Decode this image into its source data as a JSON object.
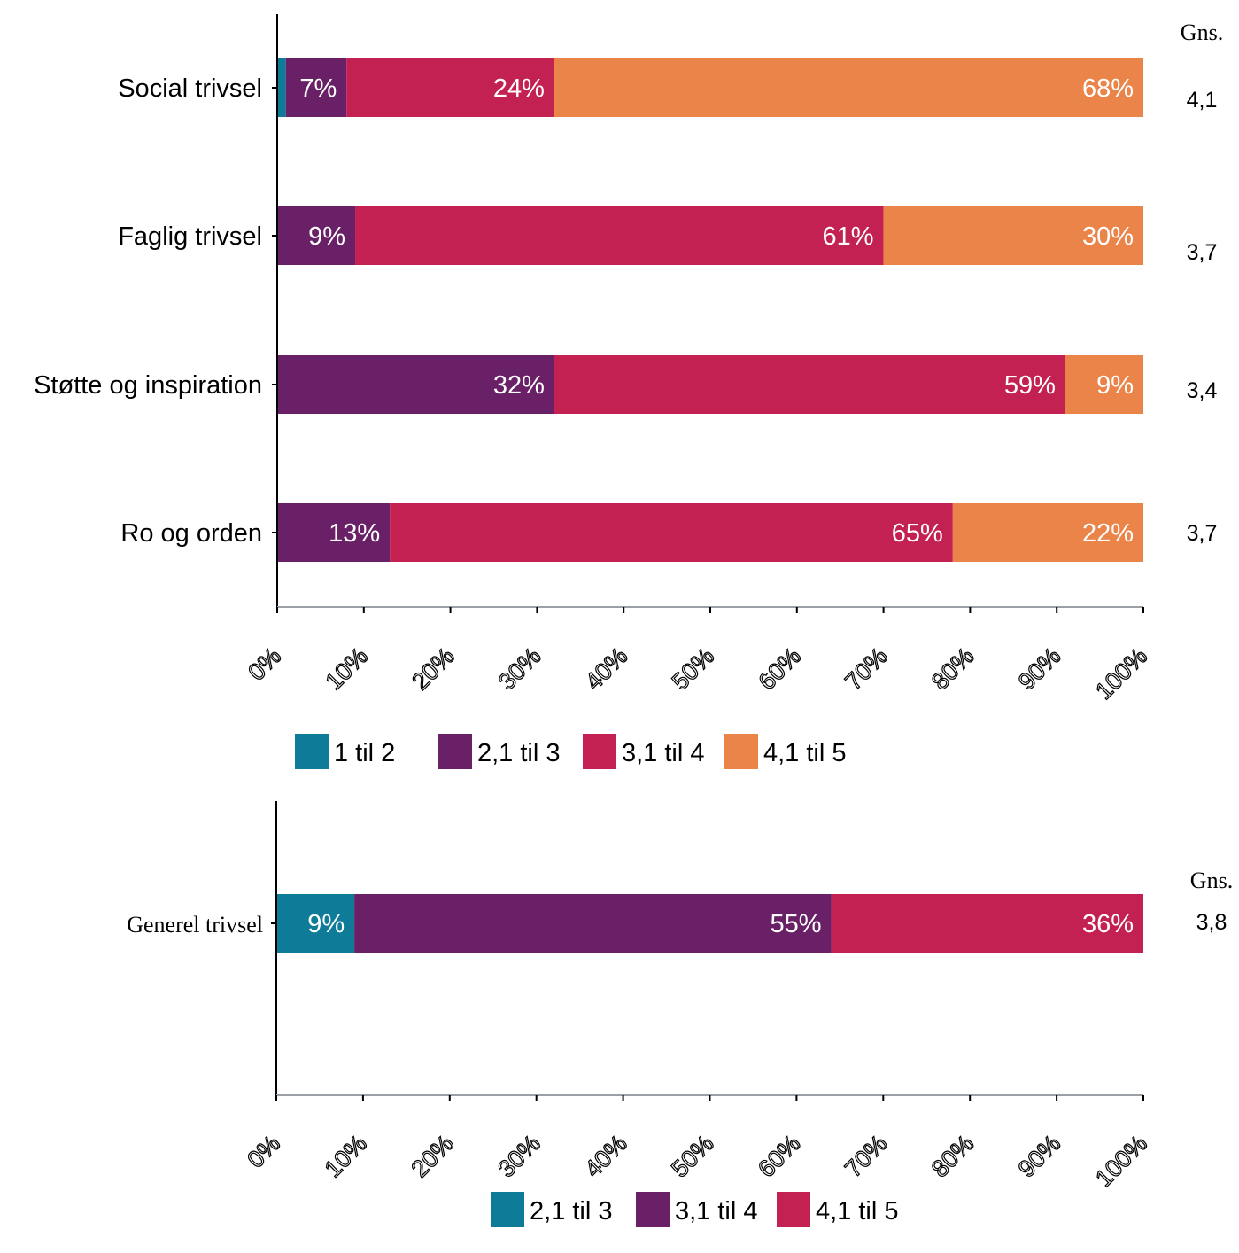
{
  "chart_data": [
    {
      "type": "bar",
      "orientation": "horizontal",
      "stacked": true,
      "categories": [
        "Social trivsel",
        "Faglig trivsel",
        "Støtte og inspiration",
        "Ro og orden"
      ],
      "series": [
        {
          "name": "1 til 2",
          "color": "#0e7b98",
          "values": [
            1,
            0,
            0,
            0
          ],
          "labels": [
            "",
            "",
            "",
            ""
          ]
        },
        {
          "name": "2,1 til 3",
          "color": "#6a2067",
          "values": [
            7,
            9,
            32,
            13
          ],
          "labels": [
            "7%",
            "9%",
            "32%",
            "13%"
          ]
        },
        {
          "name": "3,1 til 4",
          "color": "#c42153",
          "values": [
            24,
            61,
            59,
            65
          ],
          "labels": [
            "24%",
            "61%",
            "59%",
            "65%"
          ]
        },
        {
          "name": "4,1 til 5",
          "color": "#ea8449",
          "values": [
            68,
            30,
            9,
            22
          ],
          "labels": [
            "68%",
            "30%",
            "9%",
            "22%"
          ]
        }
      ],
      "xlim": [
        0,
        100
      ],
      "x_ticks": [
        "0%",
        "10%",
        "20%",
        "30%",
        "40%",
        "50%",
        "60%",
        "70%",
        "80%",
        "90%",
        "100%"
      ],
      "mean_header": "Gns.",
      "means": [
        "4,1",
        "3,7",
        "3,4",
        "3,7"
      ],
      "legend_position": "bottom"
    },
    {
      "type": "bar",
      "orientation": "horizontal",
      "stacked": true,
      "categories": [
        "Generel trivsel"
      ],
      "series": [
        {
          "name": "2,1 til 3",
          "color": "#0e7b98",
          "values": [
            9
          ],
          "labels": [
            "9%"
          ]
        },
        {
          "name": "3,1 til 4",
          "color": "#6a2067",
          "values": [
            55
          ],
          "labels": [
            "55%"
          ]
        },
        {
          "name": "4,1 til 5",
          "color": "#c42153",
          "values": [
            36
          ],
          "labels": [
            "36%"
          ]
        }
      ],
      "xlim": [
        0,
        100
      ],
      "x_ticks": [
        "0%",
        "10%",
        "20%",
        "30%",
        "40%",
        "50%",
        "60%",
        "70%",
        "80%",
        "90%",
        "100%"
      ],
      "mean_header": "Gns.",
      "means": [
        "3,8"
      ],
      "legend_position": "bottom"
    }
  ]
}
